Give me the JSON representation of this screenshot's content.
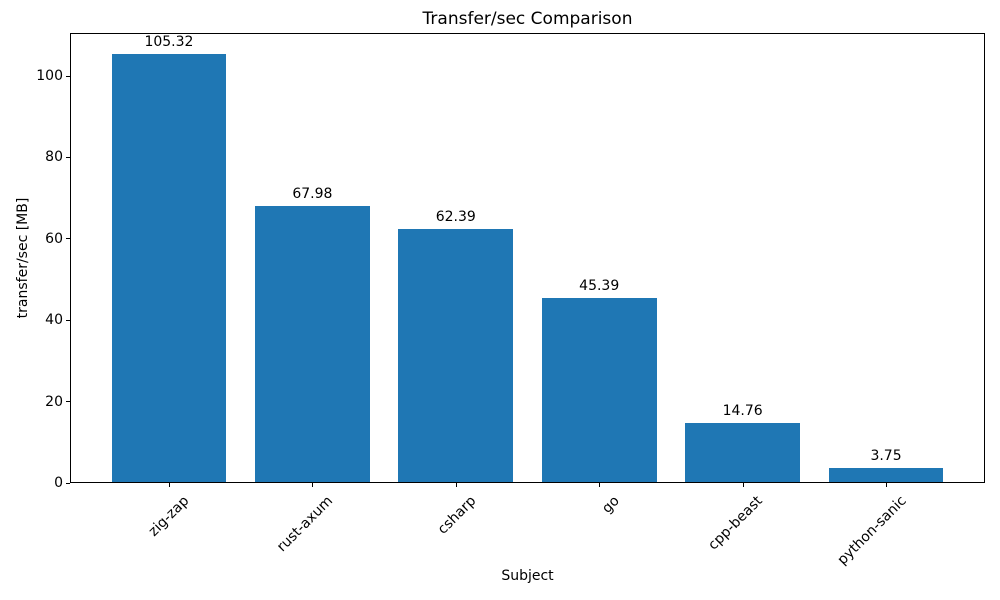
{
  "chart_data": {
    "type": "bar",
    "title": "Transfer/sec Comparison",
    "xlabel": "Subject",
    "ylabel": "transfer/sec [MB]",
    "categories": [
      "zig-zap",
      "rust-axum",
      "csharp",
      "go",
      "cpp-beast",
      "python-sanic"
    ],
    "values": [
      105.32,
      67.98,
      62.39,
      45.39,
      14.76,
      3.75
    ],
    "value_labels": [
      "105.32",
      "67.98",
      "62.39",
      "45.39",
      "14.76",
      "3.75"
    ],
    "yticks": [
      0,
      20,
      40,
      60,
      80,
      100
    ],
    "ylim": [
      0,
      110.59
    ],
    "xtick_rotation_deg": 45,
    "bar_color": "#1f77b4",
    "text_color": "#000000",
    "background_color": "#ffffff",
    "grid": false,
    "legend_position": "none",
    "bar_width_fraction": 0.8
  }
}
